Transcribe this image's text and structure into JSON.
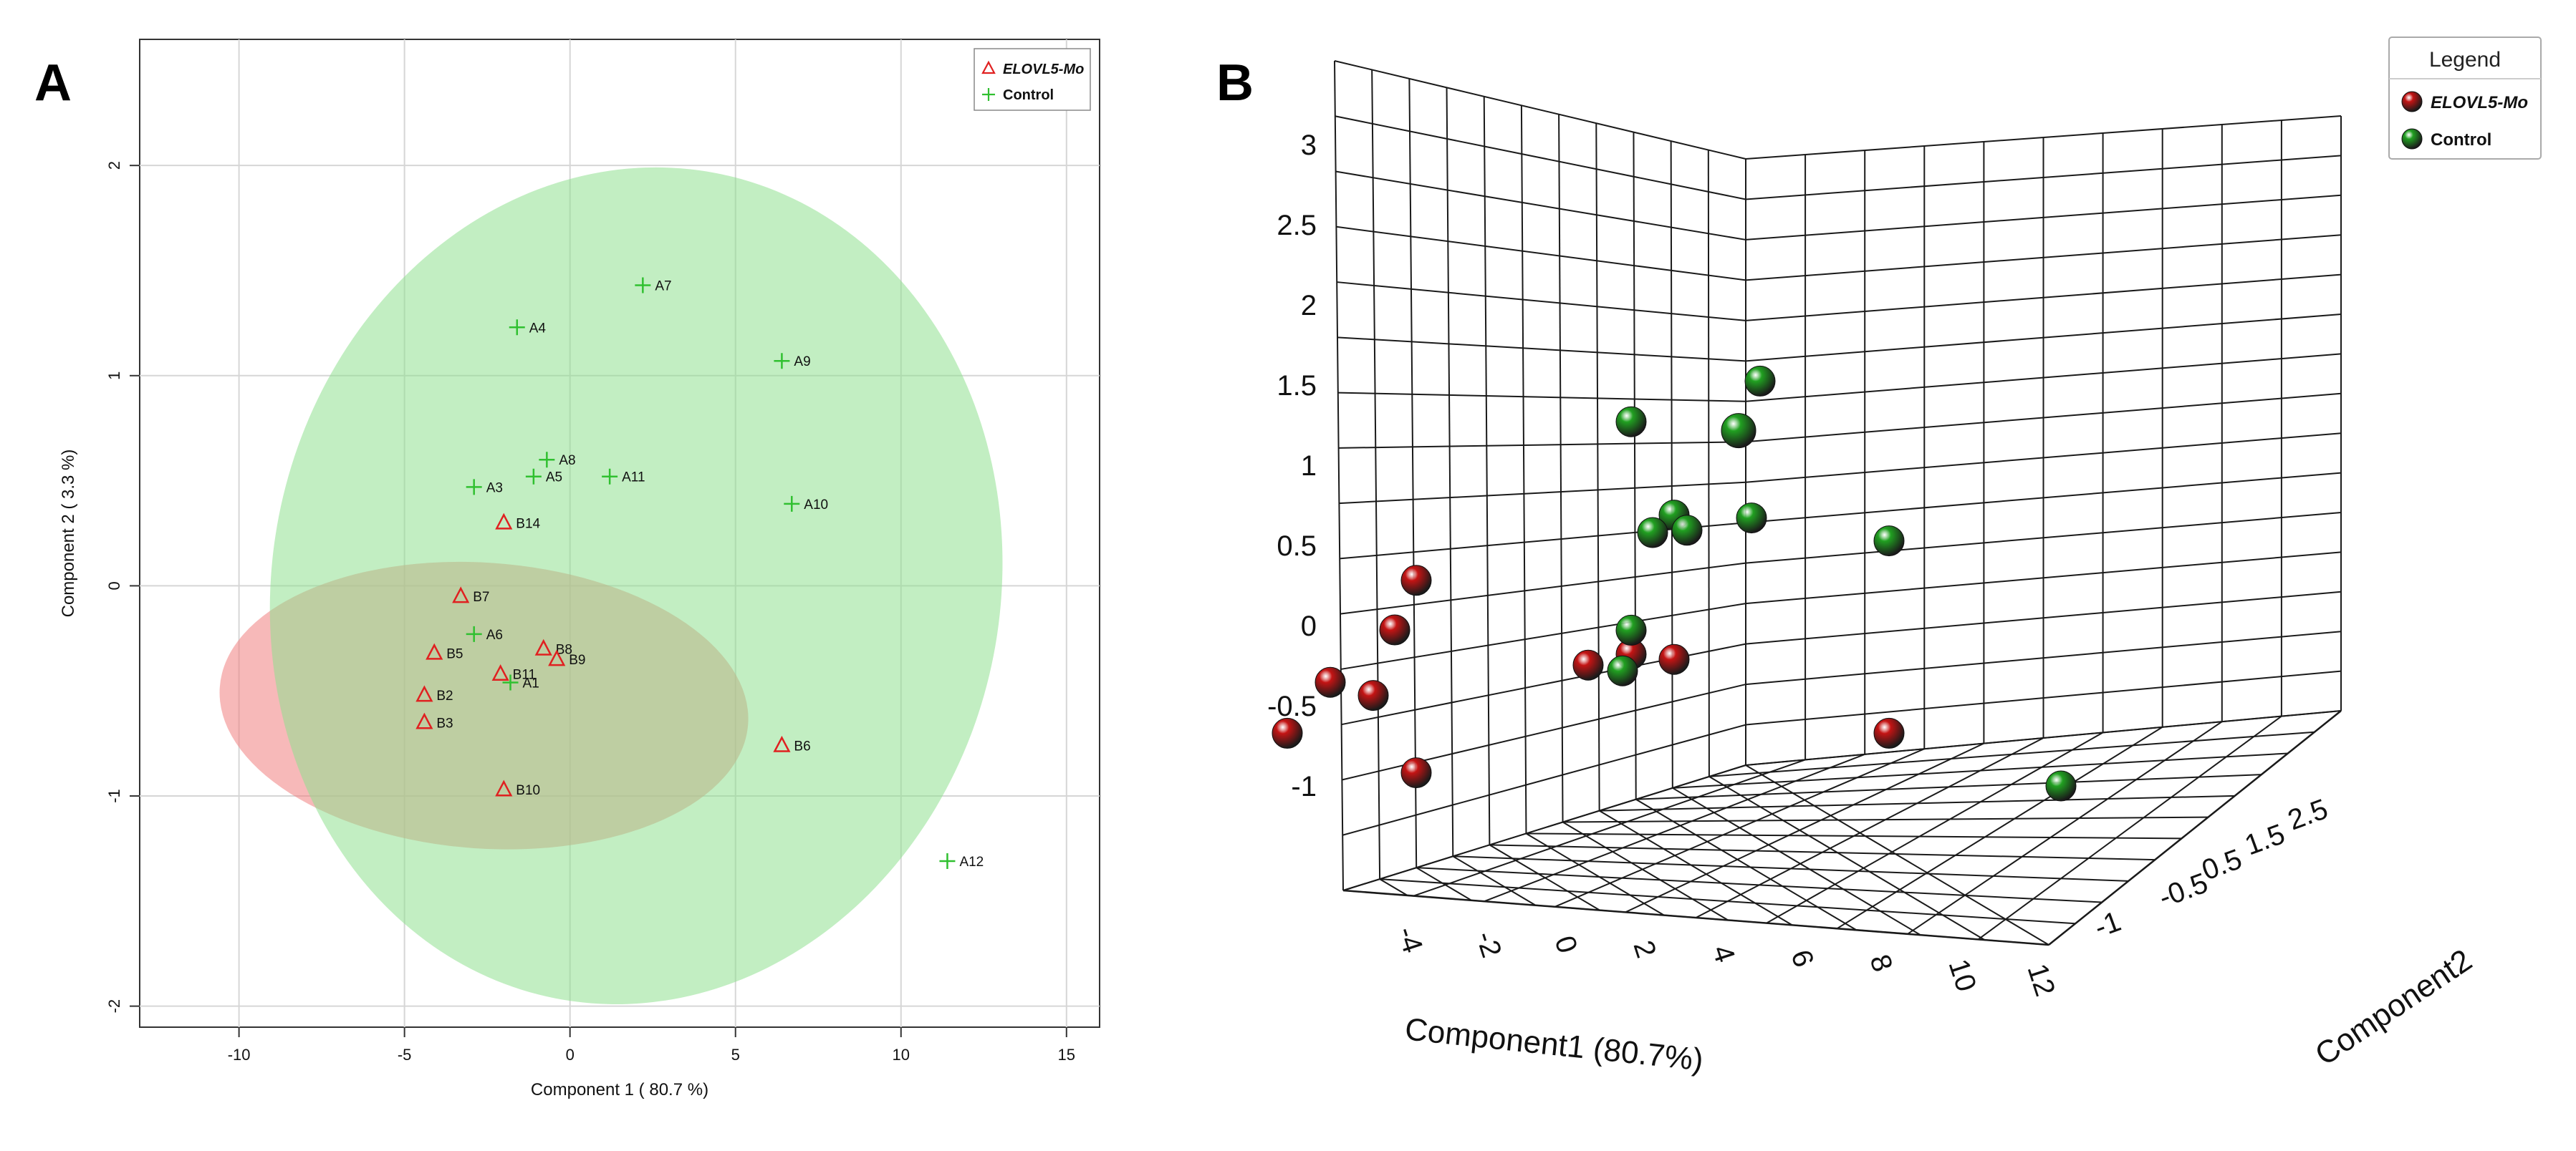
{
  "chart_data": [
    {
      "panel": "A",
      "type": "scatter",
      "xlabel": "Component 1 ( 80.7 %)",
      "ylabel": "Component 2 ( 3.3 %)",
      "xlim": [
        -13,
        16
      ],
      "ylim": [
        -2.1,
        2.6
      ],
      "xticks": [
        -10,
        -5,
        0,
        5,
        10,
        15
      ],
      "yticks": [
        -2,
        -1,
        0,
        1,
        2
      ],
      "grid": true,
      "legend_position": "top-right",
      "ellipses": [
        {
          "series": "ELOVL5-Mo",
          "color": "#f08080",
          "cx": -2.6,
          "cy": -0.57,
          "rx": 8.0,
          "ry": 0.68,
          "angle_deg": -4
        },
        {
          "series": "Control",
          "color": "#90e090",
          "cx": 2.0,
          "cy": 0.0,
          "rx": 11.0,
          "ry": 2.0,
          "angle_deg": -11
        }
      ],
      "series": [
        {
          "name": "ELOVL5-Mo",
          "marker": "triangle",
          "color": "#e02020",
          "points": [
            {
              "label": "B14",
              "x": -2.0,
              "y": 0.3
            },
            {
              "label": "B7",
              "x": -3.3,
              "y": -0.05
            },
            {
              "label": "B5",
              "x": -4.1,
              "y": -0.32
            },
            {
              "label": "B8",
              "x": -0.8,
              "y": -0.3
            },
            {
              "label": "B9",
              "x": -0.4,
              "y": -0.35
            },
            {
              "label": "B11",
              "x": -2.1,
              "y": -0.42
            },
            {
              "label": "B2",
              "x": -4.4,
              "y": -0.52
            },
            {
              "label": "B3",
              "x": -4.4,
              "y": -0.65
            },
            {
              "label": "B6",
              "x": 6.4,
              "y": -0.76
            },
            {
              "label": "B10",
              "x": -2.0,
              "y": -0.97
            }
          ]
        },
        {
          "name": "Control",
          "marker": "plus",
          "color": "#30c030",
          "points": [
            {
              "label": "A7",
              "x": 2.2,
              "y": 1.43
            },
            {
              "label": "A4",
              "x": -1.6,
              "y": 1.23
            },
            {
              "label": "A9",
              "x": 6.4,
              "y": 1.07
            },
            {
              "label": "A8",
              "x": -0.7,
              "y": 0.6
            },
            {
              "label": "A5",
              "x": -1.1,
              "y": 0.52
            },
            {
              "label": "A11",
              "x": 1.2,
              "y": 0.52
            },
            {
              "label": "A3",
              "x": -2.9,
              "y": 0.47
            },
            {
              "label": "A10",
              "x": 6.7,
              "y": 0.39
            },
            {
              "label": "A6",
              "x": -2.9,
              "y": -0.23
            },
            {
              "label": "A1",
              "x": -1.8,
              "y": -0.46
            },
            {
              "label": "A12",
              "x": 11.4,
              "y": -1.31
            }
          ]
        }
      ],
      "legend": [
        {
          "label": "ELOVL5-Mo",
          "marker": "triangle",
          "color": "#e02020"
        },
        {
          "label": "Control",
          "marker": "plus",
          "color": "#30c030"
        }
      ]
    },
    {
      "panel": "B",
      "type": "scatter",
      "dimensions": 3,
      "xlabel": "Component1 (80.7%)",
      "ylabel": "Component2",
      "zlabel": "",
      "x_ticks": [
        -4,
        -2,
        0,
        2,
        4,
        6,
        8,
        10,
        12
      ],
      "y_ticks": [
        -1,
        -0.5,
        0.5,
        1.5,
        2.5
      ],
      "z_ticks": [
        -1,
        -0.5,
        0,
        0.5,
        1,
        1.5,
        2,
        2.5,
        3
      ],
      "legend_title": "Legend",
      "legend": [
        {
          "label": "ELOVL5-Mo",
          "color": "#c41414"
        },
        {
          "label": "Control",
          "color": "#21a021"
        }
      ],
      "series": [
        {
          "name": "ELOVL5-Mo",
          "color": "#c41414",
          "points": [
            {
              "x": -1.0,
              "y": -0.5,
              "z": 0.3
            },
            {
              "x": -1.5,
              "y": -0.5,
              "z": 0.0
            },
            {
              "x": -3.0,
              "y": -0.5,
              "z": -0.3
            },
            {
              "x": -2.0,
              "y": -0.5,
              "z": -0.4
            },
            {
              "x": 3.0,
              "y": -0.5,
              "z": -0.3
            },
            {
              "x": 4.0,
              "y": -0.5,
              "z": -0.25
            },
            {
              "x": 5.0,
              "y": -0.5,
              "z": -0.3
            },
            {
              "x": -4.0,
              "y": -0.5,
              "z": -0.6
            },
            {
              "x": -1.0,
              "y": -0.5,
              "z": -0.9
            },
            {
              "x": 10.0,
              "y": -0.5,
              "z": -0.85
            }
          ]
        },
        {
          "name": "Control",
          "color": "#21a021",
          "points": [
            {
              "x": 4.0,
              "y": 1.0,
              "z": 1.2
            },
            {
              "x": 7.0,
              "y": 1.0,
              "z": 1.4
            },
            {
              "x": 6.5,
              "y": 1.0,
              "z": 1.1
            },
            {
              "x": 5.0,
              "y": 1.0,
              "z": 0.6
            },
            {
              "x": 4.5,
              "y": 1.0,
              "z": 0.5
            },
            {
              "x": 5.3,
              "y": 1.0,
              "z": 0.5
            },
            {
              "x": 6.8,
              "y": 1.0,
              "z": 0.55
            },
            {
              "x": 10.0,
              "y": 1.0,
              "z": 0.35
            },
            {
              "x": 4.0,
              "y": 1.0,
              "z": -0.1
            },
            {
              "x": 3.8,
              "y": 1.0,
              "z": -0.35
            },
            {
              "x": 14.0,
              "y": 1.0,
              "z": -1.25
            }
          ]
        }
      ]
    }
  ],
  "panels": {
    "a_label": "A",
    "b_label": "B"
  }
}
